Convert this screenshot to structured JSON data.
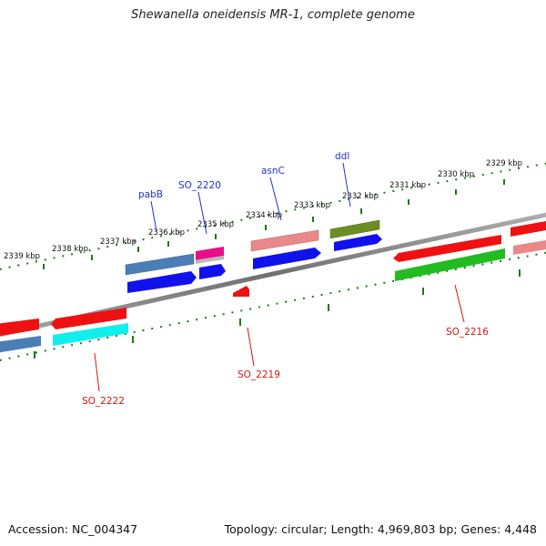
{
  "title": "Shewanella oneidensis MR-1, complete genome",
  "footer": {
    "accession": "Accession: NC_004347",
    "summary": "Topology: circular; Length: 4,969,803 bp; Genes: 4,448"
  },
  "tick_labels": [
    "2339 kbp",
    "2338 kbp",
    "2337 kbp",
    "2336 kbp",
    "2335 kbp",
    "2334 kbp",
    "2333 kbp",
    "2332 kbp",
    "2331 kbp",
    "2330 kbp",
    "2329 kbp"
  ],
  "gene_labels_top": [
    "pabB",
    "SO_2220",
    "asnC",
    "ddl"
  ],
  "gene_labels_bottom": [
    "SO_2222",
    "SO_2219",
    "SO_2216"
  ],
  "colors": {
    "backbone": "#808080",
    "tick_green": "#1a7a1a",
    "label_blue": "#2233cc",
    "label_red": "#dd1111",
    "red": "#ee1111",
    "blue": "#1111ee",
    "steelblue": "#4a7fb5",
    "pink": "#e88888",
    "magenta": "#e8108a",
    "olive": "#6b8e23",
    "green": "#22bb22",
    "cyan": "#11eeee"
  }
}
